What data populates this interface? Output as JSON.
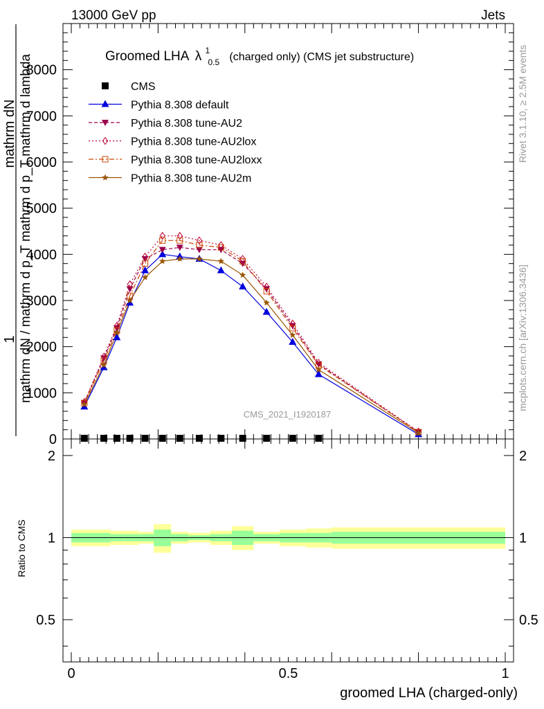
{
  "header": {
    "left": "13000 GeV pp",
    "right": "Jets"
  },
  "side_labels": {
    "rivet": "Rivet 3.1.10, ≥ 2.5M events",
    "mcplots": "mcplots.cern.ch [arXiv:1306.3436]"
  },
  "colors": {
    "cms": "#000000",
    "default": "#0000dd",
    "au2": "#99004d",
    "au2lox": "#bb0033",
    "au2loxx": "#cc4400",
    "au2m": "#995500",
    "band_outer": "#ffff99",
    "band_inner": "#99ff99"
  },
  "chart_data": [
    {
      "type": "line",
      "title_main": "Groomed LHA",
      "title_sym": "λ",
      "title_sup": "1",
      "title_sub": "0.5",
      "title_rest": "(charged only) (CMS jet substructure)",
      "ylabel_num_top": "1",
      "ylabel_num": "mathrm dN",
      "ylabel_den": "mathrm dN / mathrm d p_T mathrm d p_T mathrm d lambda",
      "watermark": "CMS_2021_I1920187",
      "xlim": [
        0,
        1
      ],
      "ylim": [
        0,
        9000
      ],
      "y_ticks": [
        0,
        1000,
        2000,
        3000,
        4000,
        5000,
        6000,
        7000,
        8000
      ],
      "y_tick_labels": [
        "0",
        "1000",
        "2000",
        "3000",
        "4000",
        "5000",
        "6000",
        "7000",
        "8000"
      ],
      "x": [
        0.03,
        0.075,
        0.105,
        0.135,
        0.17,
        0.21,
        0.25,
        0.295,
        0.345,
        0.395,
        0.45,
        0.51,
        0.57,
        0.8
      ],
      "series": [
        {
          "name": "CMS",
          "key": "cms",
          "marker": "square",
          "values": [
            10,
            10,
            10,
            10,
            10,
            10,
            10,
            10,
            10,
            10,
            10,
            10,
            10,
            null
          ]
        },
        {
          "name": "Pythia 8.308 default",
          "key": "default",
          "marker": "triangle-up",
          "dash": "",
          "values": [
            700,
            1550,
            2200,
            2950,
            3650,
            4000,
            3950,
            3900,
            3650,
            3300,
            2750,
            2100,
            1400,
            100
          ]
        },
        {
          "name": "Pythia 8.308 tune-AU2",
          "key": "au2",
          "marker": "triangle-down",
          "dash": "5,3",
          "values": [
            780,
            1750,
            2400,
            3250,
            3900,
            4100,
            4150,
            4100,
            4100,
            3800,
            3250,
            2450,
            1620,
            150
          ]
        },
        {
          "name": "Pythia 8.308 tune-AU2lox",
          "key": "au2lox",
          "marker": "diamond",
          "dash": "2,3",
          "values": [
            800,
            1780,
            2450,
            3350,
            3950,
            4400,
            4400,
            4300,
            4200,
            3900,
            3300,
            2500,
            1650,
            160
          ]
        },
        {
          "name": "Pythia 8.308 tune-AU2loxx",
          "key": "au2loxx",
          "marker": "square-open",
          "dash": "7,3,2,3",
          "values": [
            780,
            1700,
            2350,
            3100,
            3800,
            4300,
            4300,
            4200,
            4150,
            3850,
            3200,
            2400,
            1600,
            150
          ]
        },
        {
          "name": "Pythia 8.308 tune-AU2m",
          "key": "au2m",
          "marker": "star",
          "dash": "",
          "values": [
            750,
            1600,
            2300,
            3000,
            3500,
            3850,
            3900,
            3900,
            3850,
            3550,
            2950,
            2250,
            1500,
            130
          ]
        }
      ]
    },
    {
      "type": "area",
      "ylabel": "Ratio to CMS",
      "xlabel": "groomed LHA (charged-only)",
      "xlim": [
        0,
        1
      ],
      "ylim": [
        0.35,
        2.3
      ],
      "x_ticks": [
        0,
        0.5,
        1
      ],
      "x_tick_labels": [
        "0",
        "0.5",
        "1"
      ],
      "y_ticks": [
        0.5,
        1,
        2
      ],
      "y_tick_labels": [
        "0.5",
        "1",
        "2"
      ],
      "bins": [
        0,
        0.055,
        0.09,
        0.12,
        0.155,
        0.19,
        0.23,
        0.27,
        0.32,
        0.37,
        0.42,
        0.48,
        0.54,
        0.6,
        1
      ],
      "outer_band_halfwidth": [
        0.07,
        0.07,
        0.06,
        0.06,
        0.05,
        0.12,
        0.05,
        0.04,
        0.06,
        0.1,
        0.05,
        0.07,
        0.08,
        0.09
      ],
      "inner_band_halfwidth": [
        0.04,
        0.04,
        0.03,
        0.03,
        0.03,
        0.07,
        0.03,
        0.02,
        0.03,
        0.06,
        0.03,
        0.04,
        0.04,
        0.05
      ]
    }
  ]
}
